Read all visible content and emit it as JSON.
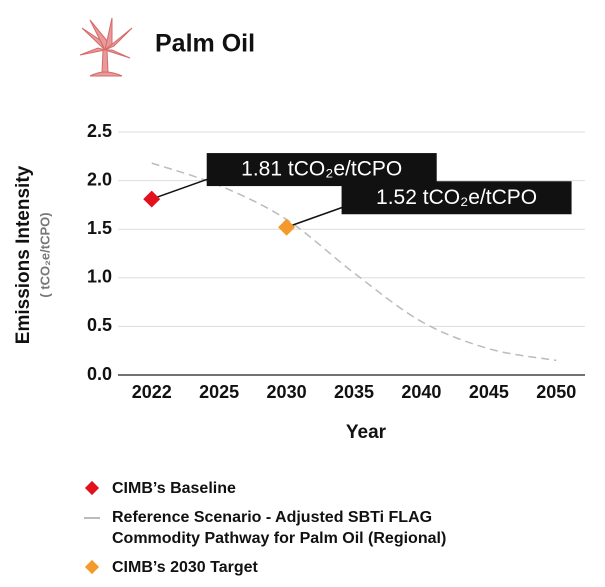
{
  "chart_data": {
    "type": "line",
    "title": "Palm Oil",
    "ylabel": "Emissions Intensity",
    "ylabel_sub": "( tCO₂e/tCPO)",
    "xlabel": "Year",
    "categories": [
      "2022",
      "2025",
      "2030",
      "2035",
      "2040",
      "2045",
      "2050"
    ],
    "ylim": [
      0,
      2.5
    ],
    "yticks": [
      {
        "value": 0,
        "label": "0.0"
      },
      {
        "value": 0.5,
        "label": "0.5"
      },
      {
        "value": 1,
        "label": "1.0"
      },
      {
        "value": 1.5,
        "label": "1.5"
      },
      {
        "value": 2,
        "label": "2.0"
      },
      {
        "value": 2.5,
        "label": "2.5"
      }
    ],
    "grid": true,
    "series": [
      {
        "name": "CIMB’s Baseline",
        "color": "#e3101e",
        "marker": "diamond",
        "values": [
          1.81,
          null,
          null,
          null,
          null,
          null,
          null
        ],
        "value_labels": [
          "1.81 tCO₂e/tCPO",
          null,
          null,
          null,
          null,
          null,
          null
        ]
      },
      {
        "name": "Reference Scenario - Adjusted SBTi FLAG Commodity Pathway for Palm Oil (Regional)",
        "color": "#bbbbbb",
        "marker": "dashed-line",
        "values": [
          2.18,
          1.95,
          1.6,
          1.05,
          0.55,
          0.27,
          0.15
        ]
      },
      {
        "name": "CIMB’s 2030 Target",
        "color": "#f39a2b",
        "marker": "diamond",
        "values": [
          null,
          null,
          1.52,
          null,
          null,
          null,
          null
        ],
        "value_labels": [
          null,
          null,
          "1.52 tCO₂e/tCPO",
          null,
          null,
          null,
          null
        ]
      }
    ]
  }
}
